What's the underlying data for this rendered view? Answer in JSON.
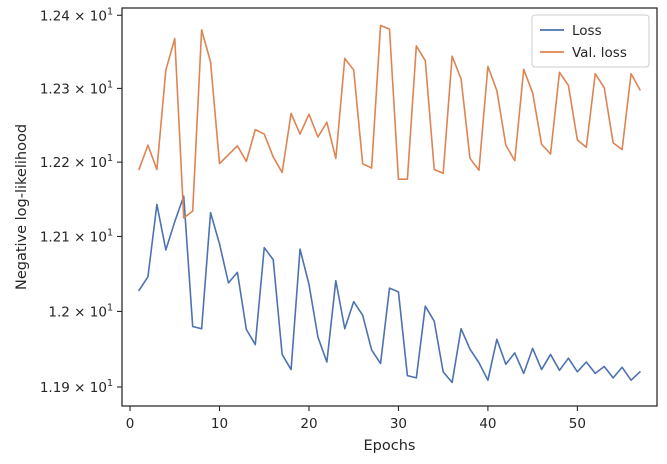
{
  "chart_data": {
    "type": "line",
    "title": "",
    "xlabel": "Epochs",
    "ylabel": "Negative log-likelihood",
    "xlim": [
      -0.9,
      58.9
    ],
    "ylim": [
      11.875,
      12.41
    ],
    "yscale": "log",
    "grid": false,
    "legend": "top-right",
    "x_ticks": [
      0,
      10,
      20,
      30,
      40,
      50
    ],
    "x_tick_labels": [
      "0",
      "10",
      "20",
      "30",
      "40",
      "50"
    ],
    "y_ticks": [
      11.9,
      12.0,
      12.1,
      12.2,
      12.3,
      12.4
    ],
    "y_tick_labels": [
      {
        "mantissa": "1.19",
        "times": "×",
        "base": "10",
        "exp": "1"
      },
      {
        "mantissa": "1.2",
        "times": "×",
        "base": "10",
        "exp": "1"
      },
      {
        "mantissa": "1.21",
        "times": "×",
        "base": "10",
        "exp": "1"
      },
      {
        "mantissa": "1.22",
        "times": "×",
        "base": "10",
        "exp": "1"
      },
      {
        "mantissa": "1.23",
        "times": "×",
        "base": "10",
        "exp": "1"
      },
      {
        "mantissa": "1.24",
        "times": "×",
        "base": "10",
        "exp": "1"
      }
    ],
    "x": [
      1,
      2,
      3,
      4,
      5,
      6,
      7,
      8,
      9,
      10,
      11,
      12,
      13,
      14,
      15,
      16,
      17,
      18,
      19,
      20,
      21,
      22,
      23,
      24,
      25,
      26,
      27,
      28,
      29,
      30,
      31,
      32,
      33,
      34,
      35,
      36,
      37,
      38,
      39,
      40,
      41,
      42,
      43,
      44,
      45,
      46,
      47,
      48,
      49,
      50,
      51,
      52,
      53,
      54,
      55,
      56,
      57
    ],
    "series": [
      {
        "name": "Loss",
        "color": "#4c72b0",
        "values": [
          12.028,
          12.046,
          12.143,
          12.082,
          12.12,
          12.154,
          11.98,
          11.977,
          12.132,
          12.09,
          12.038,
          12.052,
          11.976,
          11.956,
          12.085,
          12.069,
          11.943,
          11.923,
          12.083,
          12.036,
          11.966,
          11.933,
          12.041,
          11.977,
          12.013,
          11.995,
          11.949,
          11.931,
          12.031,
          12.026,
          11.915,
          11.912,
          12.007,
          11.987,
          11.92,
          11.906,
          11.977,
          11.95,
          11.932,
          11.909,
          11.963,
          11.93,
          11.945,
          11.918,
          11.951,
          11.923,
          11.943,
          11.922,
          11.938,
          11.92,
          11.933,
          11.918,
          11.927,
          11.912,
          11.926,
          11.909,
          11.92
        ]
      },
      {
        "name": "Val. loss",
        "color": "#dd8452",
        "values": [
          12.19,
          12.223,
          12.19,
          12.325,
          12.368,
          12.125,
          12.134,
          12.38,
          12.336,
          12.198,
          12.21,
          12.222,
          12.201,
          12.244,
          12.238,
          12.207,
          12.186,
          12.266,
          12.238,
          12.265,
          12.234,
          12.254,
          12.205,
          12.341,
          12.325,
          12.198,
          12.192,
          12.386,
          12.381,
          12.177,
          12.177,
          12.358,
          12.338,
          12.19,
          12.185,
          12.344,
          12.313,
          12.205,
          12.189,
          12.33,
          12.297,
          12.223,
          12.202,
          12.326,
          12.294,
          12.224,
          12.211,
          12.322,
          12.304,
          12.23,
          12.22,
          12.32,
          12.301,
          12.226,
          12.217,
          12.32,
          12.298
        ]
      }
    ]
  }
}
